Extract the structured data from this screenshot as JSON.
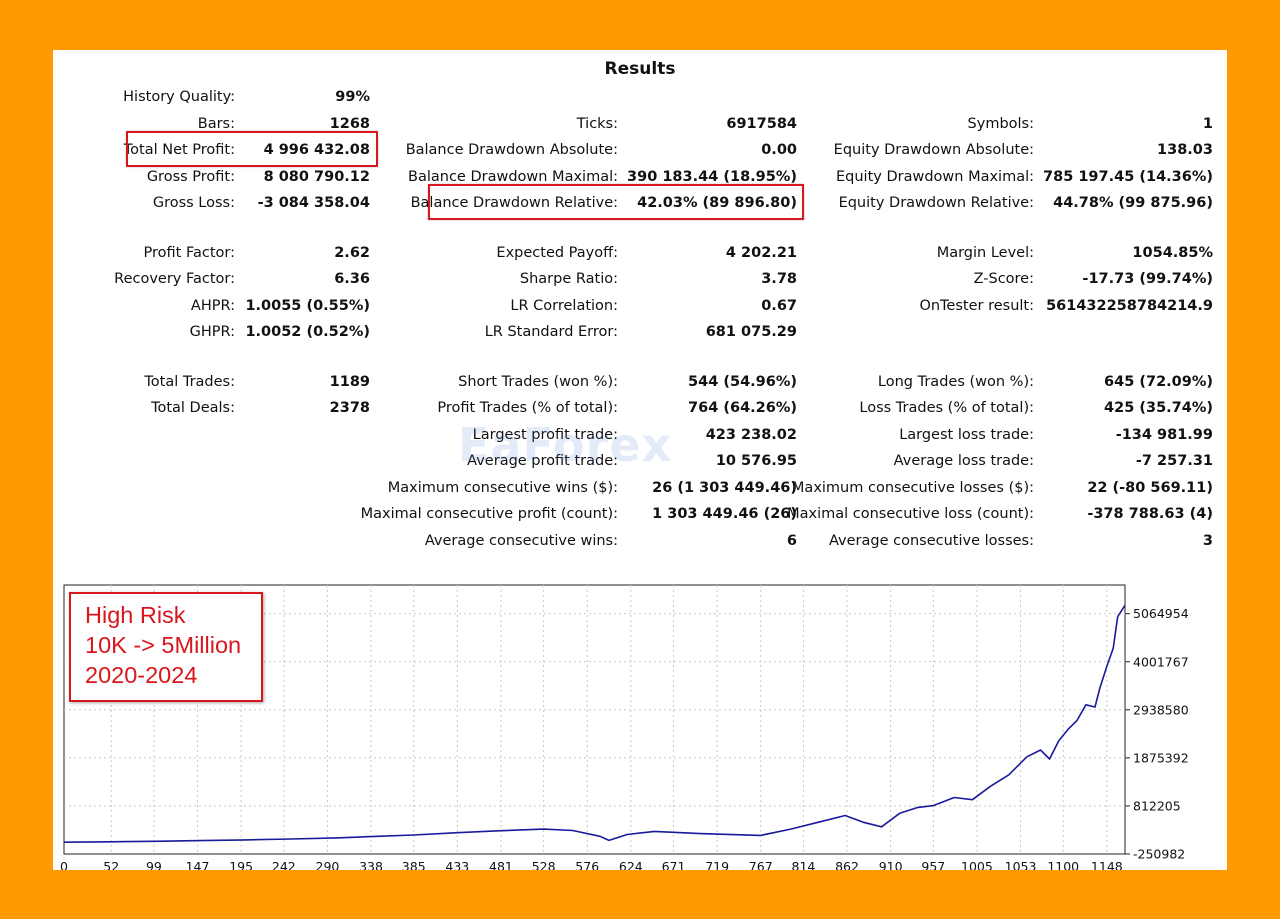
{
  "title": "Results",
  "stats": [
    {
      "id": "history-quality",
      "label": "History Quality:",
      "value": "99%"
    },
    {
      "id": "bars",
      "label": "Bars:",
      "value": "1268"
    },
    {
      "id": "ticks",
      "label": "Ticks:",
      "value": "6917584"
    },
    {
      "id": "symbols",
      "label": "Symbols:",
      "value": "1"
    },
    {
      "id": "total-net-profit",
      "label": "Total Net Profit:",
      "value": "4 996 432.08"
    },
    {
      "id": "balance-drawdown-absolute",
      "label": "Balance Drawdown Absolute:",
      "value": "0.00"
    },
    {
      "id": "equity-drawdown-absolute",
      "label": "Equity Drawdown Absolute:",
      "value": "138.03"
    },
    {
      "id": "gross-profit",
      "label": "Gross Profit:",
      "value": "8 080 790.12"
    },
    {
      "id": "balance-drawdown-maximal",
      "label": "Balance Drawdown Maximal:",
      "value": "390 183.44 (18.95%)"
    },
    {
      "id": "equity-drawdown-maximal",
      "label": "Equity Drawdown Maximal:",
      "value": "785 197.45 (14.36%)"
    },
    {
      "id": "gross-loss",
      "label": "Gross Loss:",
      "value": "-3 084 358.04"
    },
    {
      "id": "balance-drawdown-relative",
      "label": "Balance Drawdown Relative:",
      "value": "42.03% (89 896.80)"
    },
    {
      "id": "equity-drawdown-relative",
      "label": "Equity Drawdown Relative:",
      "value": "44.78% (99 875.96)"
    },
    {
      "id": "profit-factor",
      "label": "Profit Factor:",
      "value": "2.62"
    },
    {
      "id": "expected-payoff",
      "label": "Expected Payoff:",
      "value": "4 202.21"
    },
    {
      "id": "margin-level",
      "label": "Margin Level:",
      "value": "1054.85%"
    },
    {
      "id": "recovery-factor",
      "label": "Recovery Factor:",
      "value": "6.36"
    },
    {
      "id": "sharpe-ratio",
      "label": "Sharpe Ratio:",
      "value": "3.78"
    },
    {
      "id": "z-score",
      "label": "Z-Score:",
      "value": "-17.73 (99.74%)"
    },
    {
      "id": "ahpr",
      "label": "AHPR:",
      "value": "1.0055 (0.55%)"
    },
    {
      "id": "lr-correlation",
      "label": "LR Correlation:",
      "value": "0.67"
    },
    {
      "id": "ontester-result",
      "label": "OnTester result:",
      "value": "561432258784214.9"
    },
    {
      "id": "ghpr",
      "label": "GHPR:",
      "value": "1.0052 (0.52%)"
    },
    {
      "id": "lr-standard-error",
      "label": "LR Standard Error:",
      "value": "681 075.29"
    },
    {
      "id": "total-trades",
      "label": "Total Trades:",
      "value": "1189"
    },
    {
      "id": "short-trades",
      "label": "Short Trades (won %):",
      "value": "544 (54.96%)"
    },
    {
      "id": "long-trades",
      "label": "Long Trades (won %):",
      "value": "645 (72.09%)"
    },
    {
      "id": "total-deals",
      "label": "Total Deals:",
      "value": "2378"
    },
    {
      "id": "profit-trades",
      "label": "Profit Trades (% of total):",
      "value": "764 (64.26%)"
    },
    {
      "id": "loss-trades",
      "label": "Loss Trades (% of total):",
      "value": "425 (35.74%)"
    },
    {
      "id": "largest-profit-trade",
      "label": "Largest profit trade:",
      "value": "423 238.02"
    },
    {
      "id": "largest-loss-trade",
      "label": "Largest loss trade:",
      "value": "-134 981.99"
    },
    {
      "id": "average-profit-trade",
      "label": "Average profit trade:",
      "value": "10 576.95"
    },
    {
      "id": "average-loss-trade",
      "label": "Average loss trade:",
      "value": "-7 257.31"
    },
    {
      "id": "max-consecutive-wins",
      "label": "Maximum consecutive wins ($):",
      "value": "26 (1 303 449.46)"
    },
    {
      "id": "max-consecutive-losses",
      "label": "Maximum consecutive losses ($):",
      "value": "22 (-80 569.11)"
    },
    {
      "id": "maximal-consecutive-profit",
      "label": "Maximal consecutive profit (count):",
      "value": "1 303 449.46 (26)"
    },
    {
      "id": "maximal-consecutive-loss",
      "label": "Maximal consecutive loss (count):",
      "value": "-378 788.63 (4)"
    },
    {
      "id": "average-consecutive-wins",
      "label": "Average consecutive wins:",
      "value": "6"
    },
    {
      "id": "average-consecutive-losses",
      "label": "Average consecutive losses:",
      "value": "3"
    }
  ],
  "watermark": "EaForex",
  "note": {
    "line1": "High Risk",
    "line2": "10K -> 5Million",
    "line3": "2020-2024"
  },
  "colors": {
    "background": "#FF9A00",
    "highlight": "#d8161c",
    "line": "#1a1a9c",
    "note_text": "#d8161c"
  },
  "chart_data": {
    "type": "line",
    "x_ticks": [
      0,
      52,
      99,
      147,
      195,
      242,
      290,
      338,
      385,
      433,
      481,
      528,
      576,
      624,
      671,
      719,
      767,
      814,
      862,
      910,
      957,
      1005,
      1053,
      1100,
      1148
    ],
    "y_ticks": [
      5064954,
      4001767,
      2938580,
      1875392,
      812205,
      -250982
    ],
    "xlim": [
      0,
      1168
    ],
    "ylim": [
      -250982,
      5700000
    ],
    "grid": true,
    "series": [
      {
        "x": [
          0,
          50,
          100,
          150,
          200,
          250,
          300,
          338,
          385,
          433,
          481,
          528,
          560,
          590,
          600,
          620,
          650,
          700,
          767,
          800,
          830,
          860,
          880,
          900,
          920,
          940,
          957,
          980,
          1000,
          1020,
          1040,
          1060,
          1075,
          1085,
          1095,
          1105,
          1115,
          1125,
          1135,
          1140,
          1148,
          1155,
          1160,
          1168
        ],
        "y": [
          10000,
          18000,
          30000,
          45000,
          60000,
          80000,
          105000,
          135000,
          170000,
          220000,
          265000,
          300000,
          270000,
          140000,
          50000,
          180000,
          250000,
          200000,
          160000,
          300000,
          450000,
          600000,
          450000,
          350000,
          650000,
          780000,
          820000,
          1000000,
          950000,
          1250000,
          1500000,
          1900000,
          2050000,
          1850000,
          2250000,
          2500000,
          2700000,
          3050000,
          3000000,
          3400000,
          3900000,
          4300000,
          5000000,
          5250000
        ]
      }
    ]
  }
}
